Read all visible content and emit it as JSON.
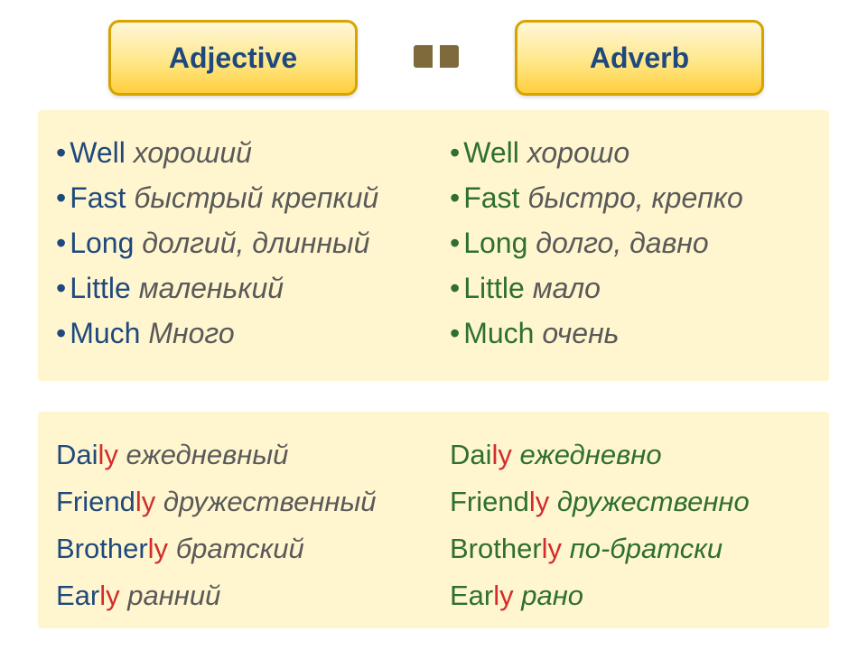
{
  "header": {
    "adjective": "Adjective",
    "adverb": "Adverb"
  },
  "top": {
    "left": [
      {
        "en": "Well",
        "ru": "хороший"
      },
      {
        "en": "Fast",
        "ru": "быстрый крепкий"
      },
      {
        "en": "Long",
        "ru": "долгий, длинный"
      },
      {
        "en": "Little",
        "ru": "маленький"
      },
      {
        "en": "Much",
        "ru": "Много"
      }
    ],
    "right": [
      {
        "en": "Well",
        "ru": "хорошо"
      },
      {
        "en": "Fast",
        "ru": "быстро, крепко"
      },
      {
        "en": "Long",
        "ru": "долго, давно"
      },
      {
        "en": "Little",
        "ru": "мало"
      },
      {
        "en": "Much",
        "ru": "очень"
      }
    ]
  },
  "bottom": {
    "left": [
      {
        "en_stem": "Dai",
        "en_suf": "ly",
        "ru": "ежедневный"
      },
      {
        "en_stem": "Friend",
        "en_suf": "ly",
        "ru": "дружественный"
      },
      {
        "en_stem": "Brother",
        "en_suf": "ly",
        "ru": "братский"
      },
      {
        "en_stem": "Ear",
        "en_suf": "ly",
        "ru": "ранний"
      }
    ],
    "right": [
      {
        "en_stem": "Dai",
        "en_suf": "ly",
        "ru": "ежедневно"
      },
      {
        "en_stem": "Friend",
        "en_suf": "ly",
        "ru": "дружественно"
      },
      {
        "en_stem": "Brother",
        "en_suf": "ly",
        "ru": "по-братски"
      },
      {
        "en_stem": "Ear",
        "en_suf": "ly",
        "ru": "рано"
      }
    ]
  },
  "colors": {
    "panel_bg": "#fff6cf",
    "pill_border": "#d6a400",
    "english_blue": "#1f497d",
    "english_green": "#2f6f2f",
    "suffix_red": "#d22d2d",
    "russian_grey": "#595959",
    "russian_green": "#2f6f2f"
  }
}
